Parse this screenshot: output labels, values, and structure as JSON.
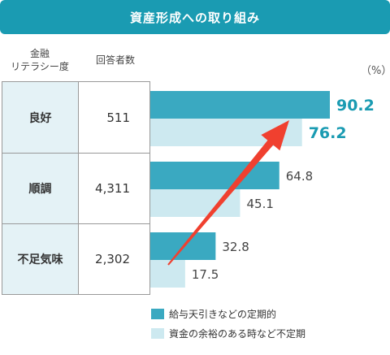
{
  "title": "資産形成への取り組み",
  "headers": {
    "literacy": [
      "金融",
      "リテラシー度"
    ],
    "count": "回答者数"
  },
  "unit": "（%）",
  "colors": {
    "dark": "#3aa9c1",
    "light": "#cde9f0",
    "accent": "#1a9bb2",
    "arrow": "#f0402f"
  },
  "chart_data": {
    "type": "bar",
    "orientation": "horizontal",
    "categories": [
      "良好",
      "順調",
      "不足気味"
    ],
    "respondents": [
      "511",
      "4,311",
      "2,302"
    ],
    "series": [
      {
        "name": "給与天引きなどの定期的",
        "values": [
          90.2,
          64.8,
          32.8
        ],
        "labels": [
          "90.2",
          "64.8",
          "32.8"
        ]
      },
      {
        "name": "資金の余裕のある時など不定期",
        "values": [
          76.2,
          45.1,
          17.5
        ],
        "labels": [
          "76.2",
          "45.1",
          "17.5"
        ]
      }
    ],
    "highlight_category": "良好",
    "xlim": [
      0,
      100
    ]
  }
}
